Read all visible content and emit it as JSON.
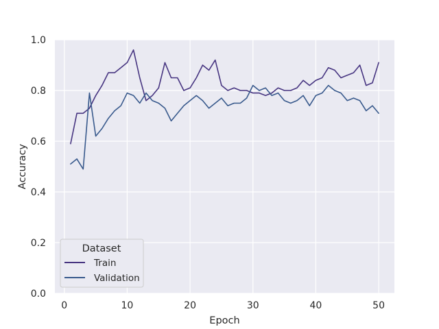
{
  "chart_data": {
    "type": "line",
    "title": "",
    "xlabel": "Epoch",
    "ylabel": "Accuracy",
    "xlim": [
      -1.5,
      52.5
    ],
    "ylim": [
      0.0,
      1.0
    ],
    "xticks": [
      0,
      10,
      20,
      30,
      40,
      50
    ],
    "yticks": [
      0.0,
      0.2,
      0.4,
      0.6,
      0.8,
      1.0
    ],
    "xtick_labels": [
      "0",
      "10",
      "20",
      "30",
      "40",
      "50"
    ],
    "ytick_labels": [
      "0.0",
      "0.2",
      "0.4",
      "0.6",
      "0.8",
      "1.0"
    ],
    "grid": true,
    "legend": {
      "title": "Dataset",
      "position": "lower-left"
    },
    "x": [
      1,
      2,
      3,
      4,
      5,
      6,
      7,
      8,
      9,
      10,
      11,
      12,
      13,
      14,
      15,
      16,
      17,
      18,
      19,
      20,
      21,
      22,
      23,
      24,
      25,
      26,
      27,
      28,
      29,
      30,
      31,
      32,
      33,
      34,
      35,
      36,
      37,
      38,
      39,
      40,
      41,
      42,
      43,
      44,
      45,
      46,
      47,
      48,
      49,
      50
    ],
    "series": [
      {
        "name": "Train",
        "color": "#463480",
        "values": [
          0.59,
          0.71,
          0.71,
          0.73,
          0.78,
          0.82,
          0.87,
          0.87,
          0.89,
          0.91,
          0.96,
          0.85,
          0.76,
          0.78,
          0.81,
          0.91,
          0.85,
          0.85,
          0.8,
          0.81,
          0.85,
          0.9,
          0.88,
          0.92,
          0.82,
          0.8,
          0.81,
          0.8,
          0.8,
          0.79,
          0.79,
          0.78,
          0.79,
          0.81,
          0.8,
          0.8,
          0.81,
          0.84,
          0.82,
          0.84,
          0.85,
          0.89,
          0.88,
          0.85,
          0.86,
          0.87,
          0.9,
          0.82,
          0.83,
          0.91
        ]
      },
      {
        "name": "Validation",
        "color": "#38598c",
        "values": [
          0.51,
          0.53,
          0.49,
          0.79,
          0.62,
          0.65,
          0.69,
          0.72,
          0.74,
          0.79,
          0.78,
          0.75,
          0.79,
          0.76,
          0.75,
          0.73,
          0.68,
          0.71,
          0.74,
          0.76,
          0.78,
          0.76,
          0.73,
          0.75,
          0.77,
          0.74,
          0.75,
          0.75,
          0.77,
          0.82,
          0.8,
          0.81,
          0.78,
          0.79,
          0.76,
          0.75,
          0.76,
          0.78,
          0.74,
          0.78,
          0.79,
          0.82,
          0.8,
          0.79,
          0.76,
          0.77,
          0.76,
          0.72,
          0.74,
          0.71
        ]
      }
    ]
  }
}
